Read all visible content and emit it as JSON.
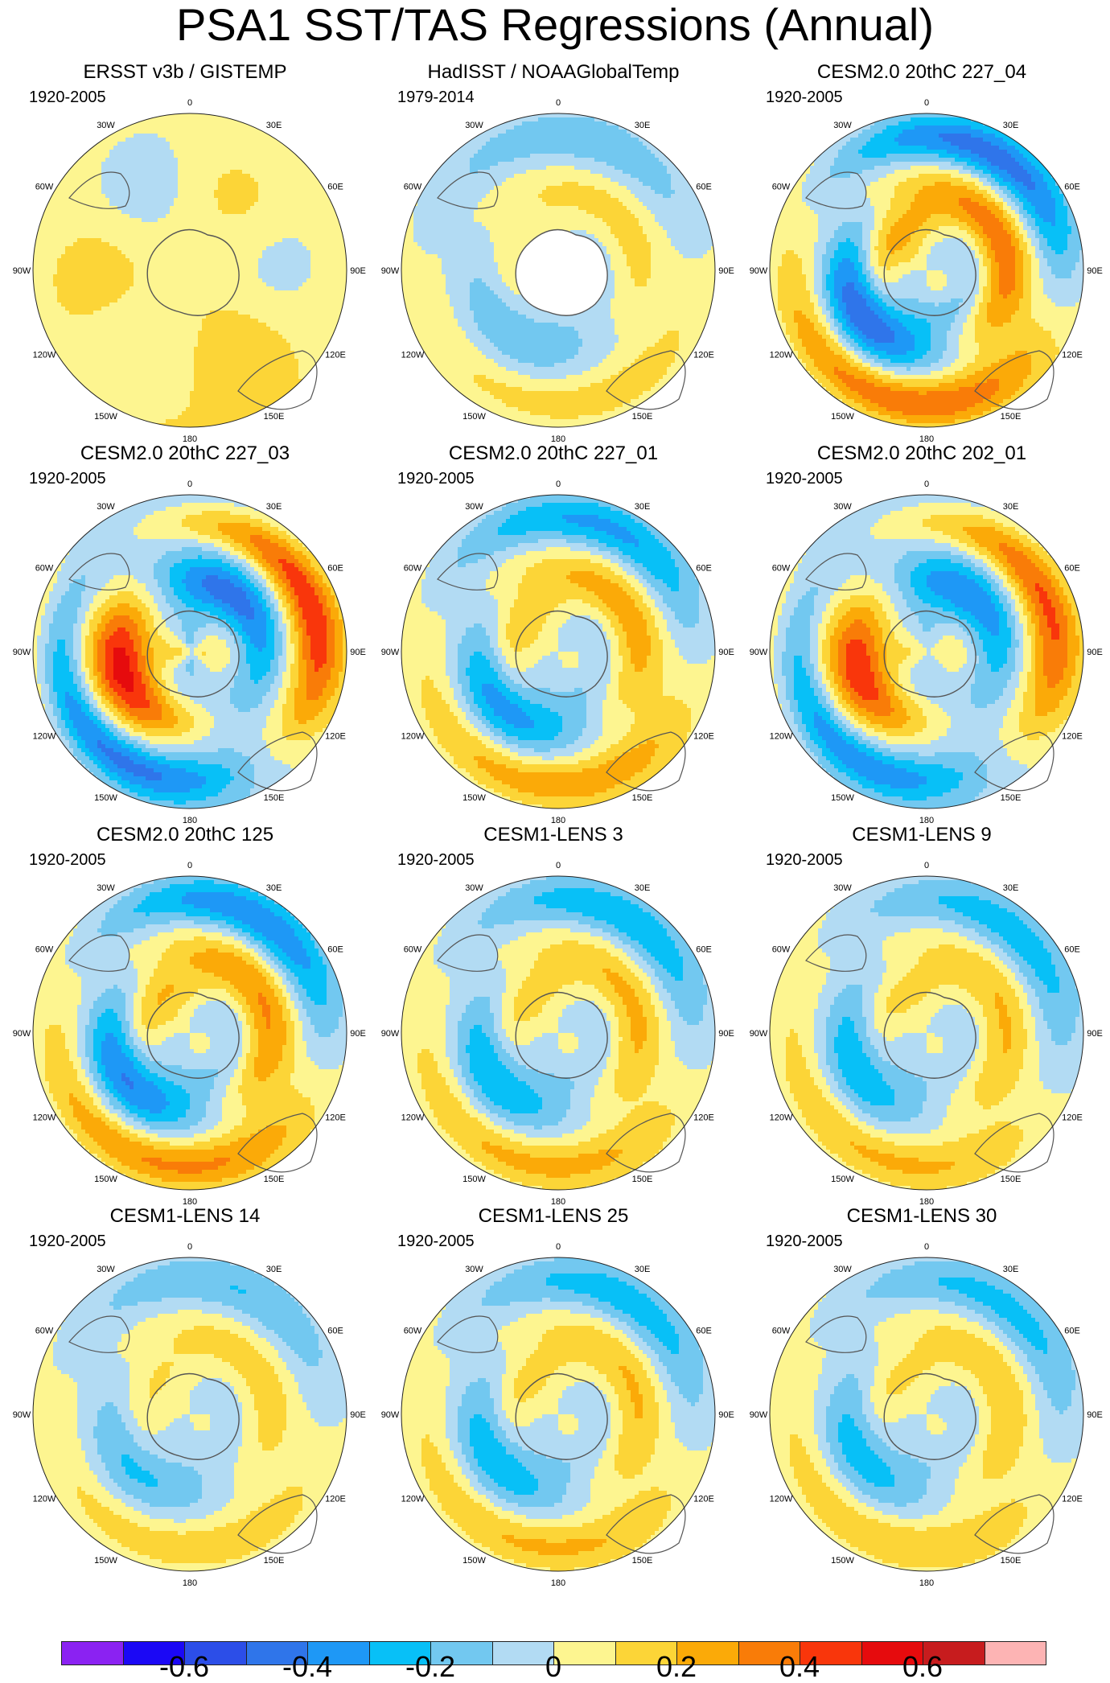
{
  "title": "PSA1 SST/TAS Regressions (Annual)",
  "palette": [
    "#8b22f2",
    "#1b08f5",
    "#2c4ee8",
    "#2f75ea",
    "#1e98f6",
    "#08c0f7",
    "#72c8f0",
    "#b2dbf3",
    "#fdf590",
    "#fcd537",
    "#fbaa08",
    "#f97c08",
    "#f9360b",
    "#e60b0d",
    "#c71c1e",
    "#fdb4b4"
  ],
  "chart_data": {
    "type": "polar-stereographic contour map panels",
    "projection": "south polar stereographic",
    "variable": "SST/TAS regression on PSA1 (annual)",
    "colorbar": {
      "levels": [
        -0.7,
        -0.6,
        -0.5,
        -0.4,
        -0.3,
        -0.2,
        -0.1,
        0,
        0.1,
        0.2,
        0.3,
        0.4,
        0.5,
        0.6,
        0.7
      ],
      "tick_labels": [
        "-0.6",
        "-0.4",
        "-0.2",
        "0",
        "0.2",
        "0.4",
        "0.6"
      ],
      "tick_values": [
        -0.6,
        -0.4,
        -0.2,
        0,
        0.2,
        0.4,
        0.6
      ]
    },
    "lon_labels": [
      "0",
      "30E",
      "60E",
      "90E",
      "120E",
      "150E",
      "180",
      "150W",
      "120W",
      "90W",
      "60W",
      "30W"
    ],
    "panels": [
      {
        "title": "ERSST v3b / GISTEMP",
        "period": "1920-2005",
        "pattern": 2,
        "amp": 0.12,
        "shift": 0
      },
      {
        "title": "HadISST / NOAAGlobalTemp",
        "period": "1979-2014",
        "pattern": 0,
        "amp": 0.18,
        "shift": 20
      },
      {
        "title": "CESM2.0 20thC 227_04",
        "period": "1920-2005",
        "pattern": 0,
        "amp": 0.45,
        "shift": 0
      },
      {
        "title": "CESM2.0 20thC 227_03",
        "period": "1920-2005",
        "pattern": 1,
        "amp": 0.55,
        "shift": 0
      },
      {
        "title": "CESM2.0 20thC 227_01",
        "period": "1920-2005",
        "pattern": 0,
        "amp": 0.32,
        "shift": 10
      },
      {
        "title": "CESM2.0 20thC 202_01",
        "period": "1920-2005",
        "pattern": 1,
        "amp": 0.48,
        "shift": 0
      },
      {
        "title": "CESM2.0 20thC 125",
        "period": "1920-2005",
        "pattern": 0,
        "amp": 0.38,
        "shift": 0
      },
      {
        "title": "CESM1-LENS 3",
        "period": "1920-2005",
        "pattern": 0,
        "amp": 0.28,
        "shift": 0
      },
      {
        "title": "CESM1-LENS 9",
        "period": "1920-2005",
        "pattern": 0,
        "amp": 0.26,
        "shift": -10
      },
      {
        "title": "CESM1-LENS 14",
        "period": "1920-2005",
        "pattern": 0,
        "amp": 0.2,
        "shift": 10
      },
      {
        "title": "CESM1-LENS 25",
        "period": "1920-2005",
        "pattern": 0,
        "amp": 0.26,
        "shift": 0
      },
      {
        "title": "CESM1-LENS 30",
        "period": "1920-2005",
        "pattern": 0,
        "amp": 0.24,
        "shift": -5
      }
    ]
  }
}
